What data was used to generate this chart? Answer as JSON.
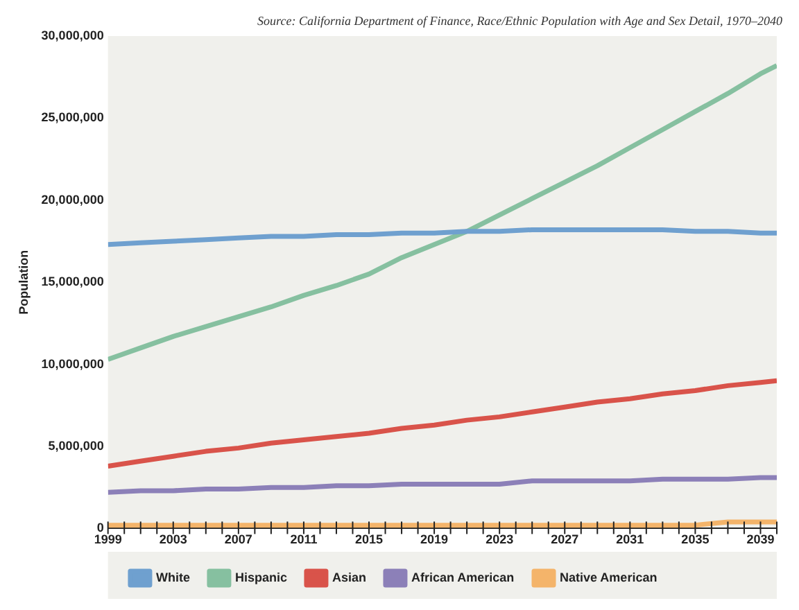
{
  "chart_data": {
    "type": "line",
    "annotations": [
      "Source: California Department of Finance, Race/Ethnic Population with Age and Sex Detail, 1970–2040"
    ],
    "ylabel": "Population",
    "x": [
      1999,
      2001,
      2003,
      2005,
      2007,
      2009,
      2011,
      2013,
      2015,
      2017,
      2019,
      2021,
      2023,
      2025,
      2027,
      2029,
      2031,
      2033,
      2035,
      2037,
      2039,
      2040
    ],
    "series": [
      {
        "name": "White",
        "color": "#6fa0cf",
        "values": [
          17300000,
          17400000,
          17500000,
          17600000,
          17700000,
          17800000,
          17800000,
          17900000,
          17900000,
          18000000,
          18000000,
          18100000,
          18100000,
          18200000,
          18200000,
          18200000,
          18200000,
          18200000,
          18100000,
          18100000,
          18000000,
          18000000
        ]
      },
      {
        "name": "Hispanic",
        "color": "#86c0a0",
        "values": [
          10300000,
          11000000,
          11700000,
          12300000,
          12900000,
          13500000,
          14200000,
          14800000,
          15500000,
          16500000,
          17300000,
          18100000,
          19100000,
          20100000,
          21100000,
          22100000,
          23200000,
          24300000,
          25400000,
          26500000,
          27700000,
          28200000
        ]
      },
      {
        "name": "Asian",
        "color": "#d9534a",
        "values": [
          3800000,
          4100000,
          4400000,
          4700000,
          4900000,
          5200000,
          5400000,
          5600000,
          5800000,
          6100000,
          6300000,
          6600000,
          6800000,
          7100000,
          7400000,
          7700000,
          7900000,
          8200000,
          8400000,
          8700000,
          8900000,
          9000000
        ]
      },
      {
        "name": "African American",
        "color": "#8c80b8",
        "values": [
          2200000,
          2300000,
          2300000,
          2400000,
          2400000,
          2500000,
          2500000,
          2600000,
          2600000,
          2700000,
          2700000,
          2700000,
          2700000,
          2900000,
          2900000,
          2900000,
          2900000,
          3000000,
          3000000,
          3000000,
          3100000,
          3100000
        ]
      },
      {
        "name": "Native American",
        "color": "#f4b46a",
        "values": [
          200000,
          200000,
          200000,
          200000,
          200000,
          200000,
          200000,
          200000,
          200000,
          200000,
          200000,
          200000,
          200000,
          200000,
          200000,
          200000,
          200000,
          200000,
          200000,
          400000,
          400000,
          400000
        ]
      }
    ],
    "xlim": [
      1999,
      2040
    ],
    "xticks": [
      1999,
      {
        "value": 2000,
        "label": null
      },
      {
        "value": 2001,
        "label": null
      },
      {
        "value": 2002,
        "label": null
      },
      2003,
      {
        "value": 2004,
        "label": null
      },
      {
        "value": 2005,
        "label": null
      },
      {
        "value": 2006,
        "label": null
      },
      2007,
      {
        "value": 2008,
        "label": null
      },
      {
        "value": 2009,
        "label": null
      },
      {
        "value": 2010,
        "label": null
      },
      2011,
      {
        "value": 2012,
        "label": null
      },
      {
        "value": 2013,
        "label": null
      },
      {
        "value": 2014,
        "label": null
      },
      2015,
      {
        "value": 2016,
        "label": null
      },
      {
        "value": 2017,
        "label": null
      },
      {
        "value": 2018,
        "label": null
      },
      2019,
      {
        "value": 2020,
        "label": null
      },
      {
        "value": 2021,
        "label": null
      },
      {
        "value": 2022,
        "label": null
      },
      2023,
      {
        "value": 2024,
        "label": null
      },
      {
        "value": 2025,
        "label": null
      },
      {
        "value": 2026,
        "label": null
      },
      2027,
      {
        "value": 2028,
        "label": null
      },
      {
        "value": 2029,
        "label": null
      },
      {
        "value": 2030,
        "label": null
      },
      2031,
      {
        "value": 2032,
        "label": null
      },
      {
        "value": 2033,
        "label": null
      },
      {
        "value": 2034,
        "label": null
      },
      2035,
      {
        "value": 2036,
        "label": null
      },
      {
        "value": 2037,
        "label": null
      },
      {
        "value": 2038,
        "label": null
      },
      2039,
      {
        "value": 2040,
        "label": null
      }
    ],
    "ylim": [
      0,
      30000000
    ],
    "yticks": [
      0,
      {
        "value": 5000000,
        "label": "5,000,000"
      },
      {
        "value": 10000000,
        "label": "10,000,000"
      },
      {
        "value": 15000000,
        "label": "15,000,000"
      },
      {
        "value": 20000000,
        "label": "20,000,000"
      },
      {
        "value": 25000000,
        "label": "25,000,000"
      },
      {
        "value": 30000000,
        "label": "30,000,000"
      }
    ],
    "grid": false,
    "legend": "bottom",
    "marker": "none",
    "line_style": "solid"
  }
}
